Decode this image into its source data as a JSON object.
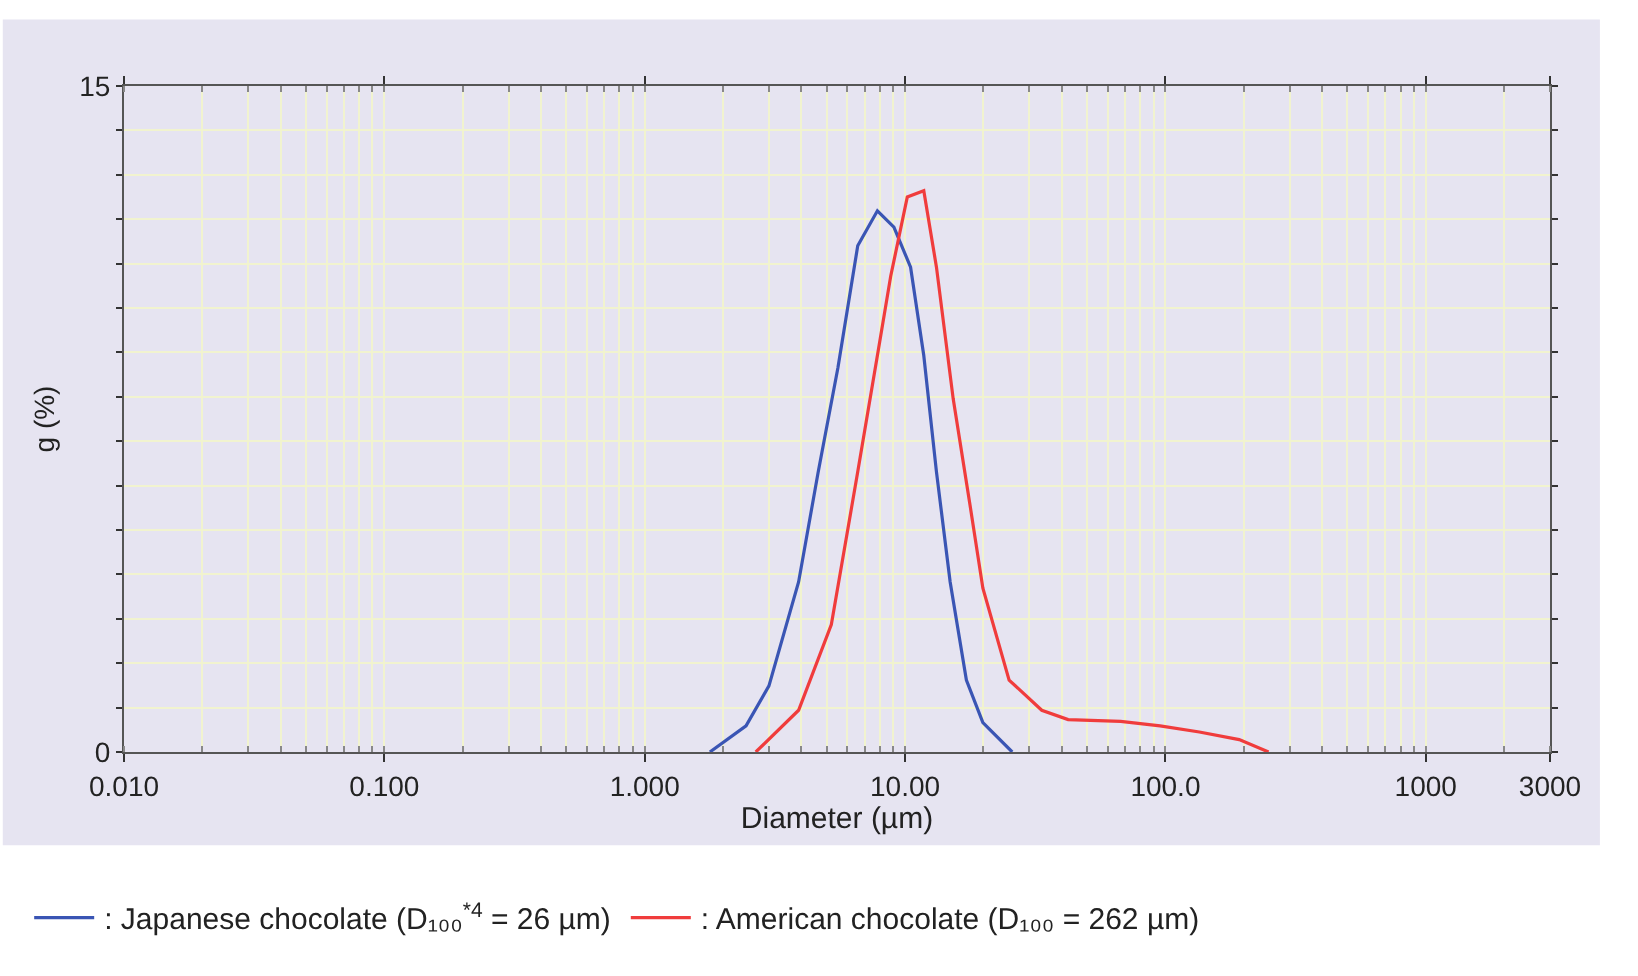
{
  "chart_data": {
    "type": "line",
    "xlabel": "Diameter (µm)",
    "ylabel": "g (%)",
    "log": "x",
    "xlim": [
      0.01,
      3000
    ],
    "xticks": [
      {
        "value": 0.01,
        "label": "0.010"
      },
      {
        "value": 0.1,
        "label": "0.100"
      },
      {
        "value": 1,
        "label": "1.000"
      },
      {
        "value": 10,
        "label": "10.00"
      },
      {
        "value": 100,
        "label": "100.0"
      },
      {
        "value": 1000,
        "label": "1000"
      },
      {
        "value": 3000,
        "label": "3000"
      }
    ],
    "ylim": [
      0,
      15
    ],
    "yticks": [
      0,
      {
        "value": 1,
        "label": null
      },
      {
        "value": 2,
        "label": null
      },
      {
        "value": 3,
        "label": null
      },
      {
        "value": 4,
        "label": null
      },
      {
        "value": 5,
        "label": null
      },
      {
        "value": 6,
        "label": null
      },
      {
        "value": 7,
        "label": null
      },
      {
        "value": 8,
        "label": null
      },
      {
        "value": 9,
        "label": null
      },
      {
        "value": 10,
        "label": null
      },
      {
        "value": 11,
        "label": null
      },
      {
        "value": 12,
        "label": null
      },
      {
        "value": 13,
        "label": null
      },
      {
        "value": 14,
        "label": null
      },
      15
    ],
    "grid": true,
    "legend": "bottom",
    "marker": "none",
    "line_style": "solid",
    "series": [
      {
        "name": ": Japanese chocolate (D₁₀₀$^{*4}$ = 26 µm)",
        "color": "#3a55b4",
        "x": [
          1.78,
          2.45,
          3.0,
          3.9,
          4.64,
          5.52,
          6.58,
          7.83,
          9.06,
          10.5,
          11.8,
          13.2,
          14.9,
          17.2,
          19.9,
          25.8
        ],
        "values": [
          0,
          0.59,
          1.49,
          3.83,
          6.31,
          8.65,
          11.4,
          12.19,
          11.82,
          10.92,
          8.93,
          6.31,
          3.83,
          1.62,
          0.66,
          0
        ]
      },
      {
        "name": ": American chocolate (D₁₀₀ = 262 µm)",
        "color": "#f03c3c",
        "x": [
          2.67,
          3.9,
          5.21,
          6.58,
          7.83,
          8.81,
          10.2,
          11.8,
          13.2,
          15.3,
          17.7,
          19.9,
          25.1,
          33.5,
          42.3,
          67.3,
          95.4,
          135,
          192,
          249
        ],
        "values": [
          0,
          0.94,
          2.87,
          6.31,
          8.93,
          10.72,
          12.5,
          12.64,
          10.92,
          7.96,
          5.62,
          3.69,
          1.62,
          0.94,
          0.73,
          0.69,
          0.59,
          0.45,
          0.28,
          0
        ]
      }
    ]
  }
}
